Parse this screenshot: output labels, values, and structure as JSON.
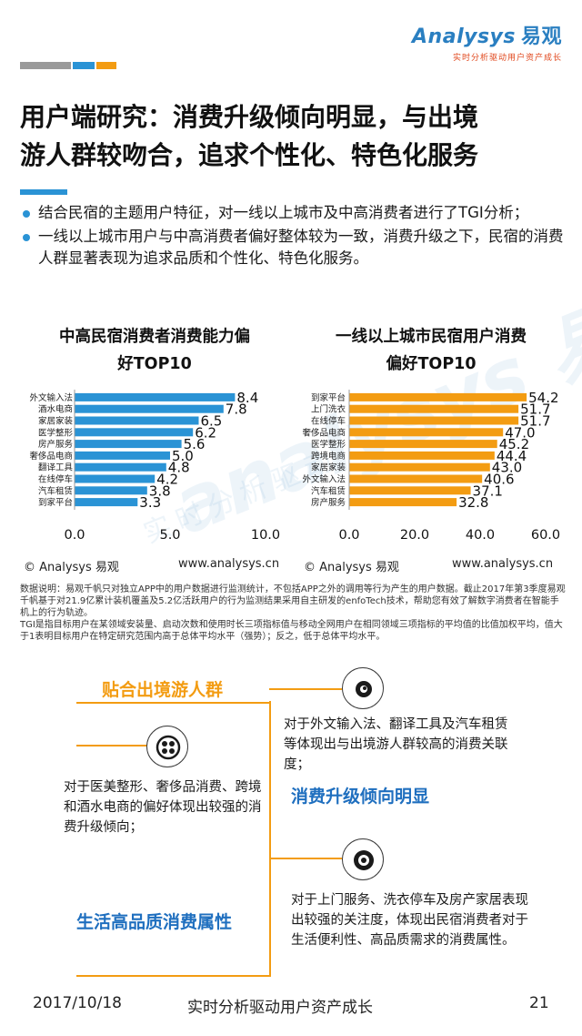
{
  "header": {
    "logo_text": "Analysys",
    "logo_cn": "易观",
    "logo_tagline": "实时分析驱动用户资产成长",
    "bar_colors": [
      "#9a9a9a",
      "#2a93d5",
      "#f39c12"
    ]
  },
  "title": {
    "line1": "用户端研究：消费升级倾向明显，与出境",
    "line2": "游人群较吻合，追求个性化、特色化服务"
  },
  "bullets": [
    "结合民宿的主题用户特征，对一线以上城市及中高消费者进行了TGI分析；",
    "一线以上城市用户与中高消费者偏好整体较为一致，消费升级之下，民宿的消费人群显著表现为追求品质和个性化、特色化服务。"
  ],
  "chart_data": [
    {
      "type": "bar",
      "orientation": "horizontal",
      "title_line1": "中高民宿消费者消费能力偏",
      "title_line2": "好TOP10",
      "categories": [
        "外文输入法",
        "酒水电商",
        "家居家装",
        "医学整形",
        "房产服务",
        "奢侈品电商",
        "翻译工具",
        "在线停车",
        "汽车租赁",
        "到家平台"
      ],
      "values": [
        8.4,
        7.8,
        6.5,
        6.2,
        5.6,
        5.0,
        4.8,
        4.2,
        3.8,
        3.3
      ],
      "value_labels": [
        "8.4",
        "7.8",
        "6.5",
        "6.2",
        "5.6",
        "5.0",
        "4.8",
        "4.2",
        "3.8",
        "3.3"
      ],
      "xlim": [
        0,
        10
      ],
      "xticks": [
        "0.0",
        "5.0",
        "10.0"
      ],
      "color": "#2a93d5",
      "source_left": "© Analysys 易观",
      "source_right": "www.analysys.cn"
    },
    {
      "type": "bar",
      "orientation": "horizontal",
      "title_line1": "一线以上城市民宿用户消费",
      "title_line2": "偏好TOP10",
      "categories": [
        "到家平台",
        "上门洗衣",
        "在线停车",
        "奢侈品电商",
        "医学整形",
        "跨境电商",
        "家居家装",
        "外文输入法",
        "汽车租赁",
        "房产服务"
      ],
      "values": [
        54.2,
        51.7,
        51.7,
        47.0,
        45.2,
        44.4,
        43.0,
        40.6,
        37.1,
        32.8
      ],
      "value_labels": [
        "54.2",
        "51.7",
        "51.7",
        "47.0",
        "45.2",
        "44.4",
        "43.0",
        "40.6",
        "37.1",
        "32.8"
      ],
      "xlim": [
        0,
        60
      ],
      "xticks": [
        "0.0",
        "20.0",
        "40.0",
        "60.0"
      ],
      "color": "#f39c12",
      "source_left": "© Analysys 易观",
      "source_right": "www.analysys.cn"
    }
  ],
  "note": {
    "line1": "数据说明：易观千帆只对独立APP中的用户数据进行监测统计，不包括APP之外的调用等行为产生的用户数据。截止2017年第3季度易观千帆基于对21.9亿累计装机覆盖及5.2亿活跃用户的行为监测结果采用自主研发的enfoTech技术，帮助您有效了解数字消费者在智能手机上的行为轨迹。",
    "line2": "TGI是指目标用户在某领域安装量、启动次数和使用时长三项指标值与移动全网用户在相同领域三项指标的平均值的比值加权平均，值大于1表明目标用户在特定研究范围内高于总体平均水平（强势）；反之，低于总体平均水平。"
  },
  "watermark": {
    "text": "analysys 易观",
    "sub": "实时分析驱动"
  },
  "sections": {
    "s1_title": "贴合出境游人群",
    "s1_text": "对于外文输入法、翻译工具及汽车租赁等体现出与出境游人群较高的消费关联度；",
    "s2_title": "消费升级倾向明显",
    "s2_text": "对于医美整形、奢侈品消费、跨境和酒水电商的偏好体现出较强的消费升级倾向；",
    "s3_title": "生活高品质消费属性",
    "s3_text": "对于上门服务、洗衣停车及房产家居表现出较强的关注度，体现出民宿消费者对于生活便利性、高品质需求的消费属性。",
    "orange": "#f39c12",
    "blue": "#1f6fbf"
  },
  "footer": {
    "date": "2017/10/18",
    "slogan": "实时分析驱动用户资产成长",
    "page": "21"
  }
}
